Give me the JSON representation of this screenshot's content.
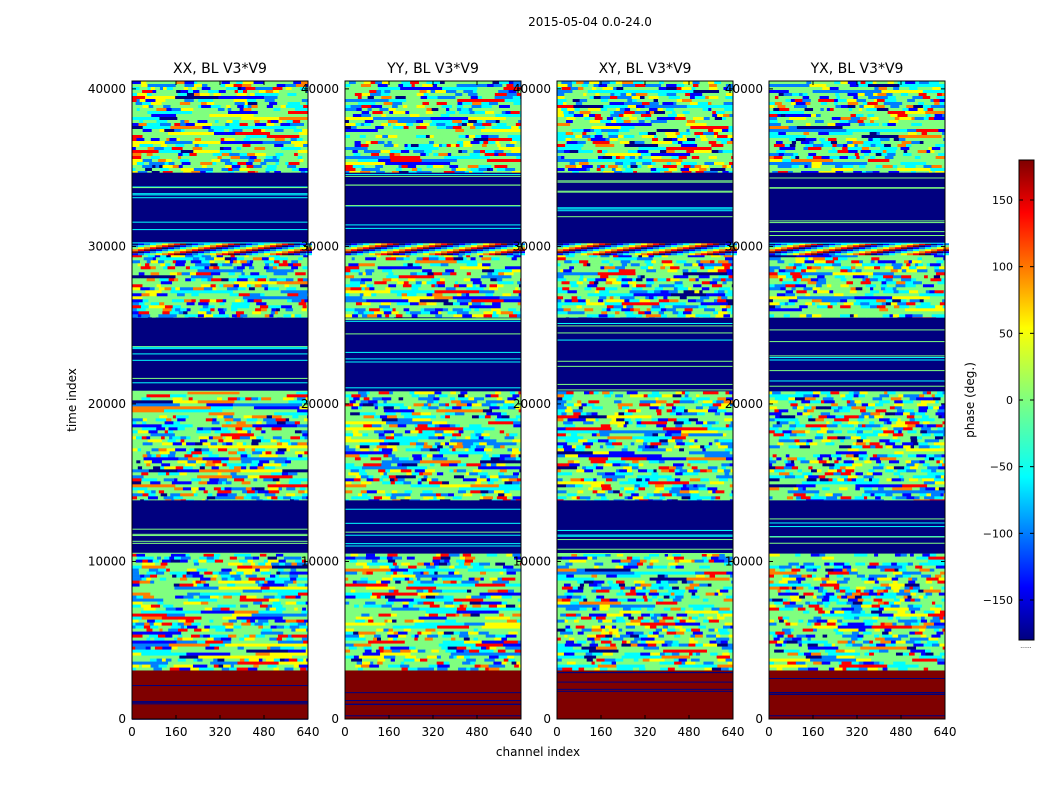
{
  "chart_data": {
    "type": "heatmap",
    "suptitle": "2015-05-04 0.0-24.0",
    "xlabel": "channel index",
    "ylabel": "time index",
    "xlim": [
      0,
      640
    ],
    "ylim": [
      0,
      40500
    ],
    "x_ticks": [
      0,
      160,
      320,
      480,
      640
    ],
    "y_ticks": [
      0,
      10000,
      20000,
      30000,
      40000
    ],
    "panels": [
      {
        "title": "XX, BL V3*V9"
      },
      {
        "title": "YY, BL V3*V9"
      },
      {
        "title": "XY, BL V3*V9"
      },
      {
        "title": "YX, BL V3*V9"
      }
    ],
    "colorbar": {
      "label": "phase (deg.)",
      "range": [
        -180,
        180
      ],
      "ticks": [
        -150,
        -100,
        -50,
        0,
        50,
        100,
        150
      ],
      "colormap": "jet",
      "extra_label": "......"
    },
    "bands": [
      {
        "from": 0,
        "to": 3100,
        "kind": "flat_max"
      },
      {
        "from": 3100,
        "to": 10500,
        "kind": "noise"
      },
      {
        "from": 10500,
        "to": 13900,
        "kind": "flat_min"
      },
      {
        "from": 13900,
        "to": 20800,
        "kind": "noise"
      },
      {
        "from": 20800,
        "to": 25500,
        "kind": "flat_min"
      },
      {
        "from": 25500,
        "to": 29500,
        "kind": "noise"
      },
      {
        "from": 29500,
        "to": 30200,
        "kind": "fringe"
      },
      {
        "from": 30200,
        "to": 34700,
        "kind": "flat_min"
      },
      {
        "from": 34700,
        "to": 40500,
        "kind": "noise"
      }
    ]
  },
  "colors": {
    "jet": [
      "#00007f",
      "#0000ff",
      "#007fff",
      "#00ffff",
      "#7fff7f",
      "#ffff00",
      "#ff7f00",
      "#ff0000",
      "#7f0000"
    ]
  }
}
